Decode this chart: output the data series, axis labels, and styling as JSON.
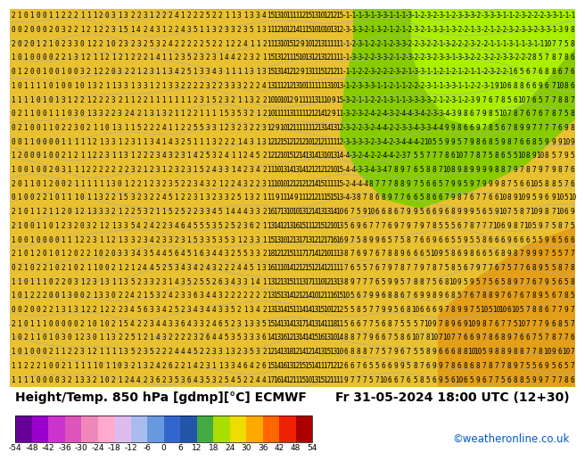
{
  "title_left": "Height/Temp. 850 hPa [gdmp][°C] ECMWF",
  "title_right": "Fr 31-05-2024 18:00 UTC (12+30)",
  "credit": "©weatheronline.co.uk",
  "colorbar_levels": [
    -54,
    -48,
    -42,
    -36,
    -30,
    -24,
    -18,
    -12,
    -6,
    0,
    6,
    12,
    18,
    24,
    30,
    36,
    42,
    48,
    54
  ],
  "colorbar_colors": [
    "#660099",
    "#9900cc",
    "#cc33cc",
    "#dd55bb",
    "#ee88bb",
    "#ffaacc",
    "#ddbbee",
    "#aabbee",
    "#6699dd",
    "#3366cc",
    "#2255aa",
    "#44aa44",
    "#aadd00",
    "#eedd00",
    "#ffaa00",
    "#ff6600",
    "#ee2200",
    "#aa0000"
  ],
  "bg_yellow": "#e8c030",
  "bg_green": "#88cc00",
  "bg_dark_green": "#44aa00",
  "contour_color": "#aaaaaa",
  "text_color": "#000000",
  "credit_color": "#0055cc",
  "title_fontsize": 10,
  "credit_fontsize": 8.5,
  "tick_fontsize": 6.5,
  "number_fontsize": 5.5,
  "bottom_bar_height": 0.135
}
